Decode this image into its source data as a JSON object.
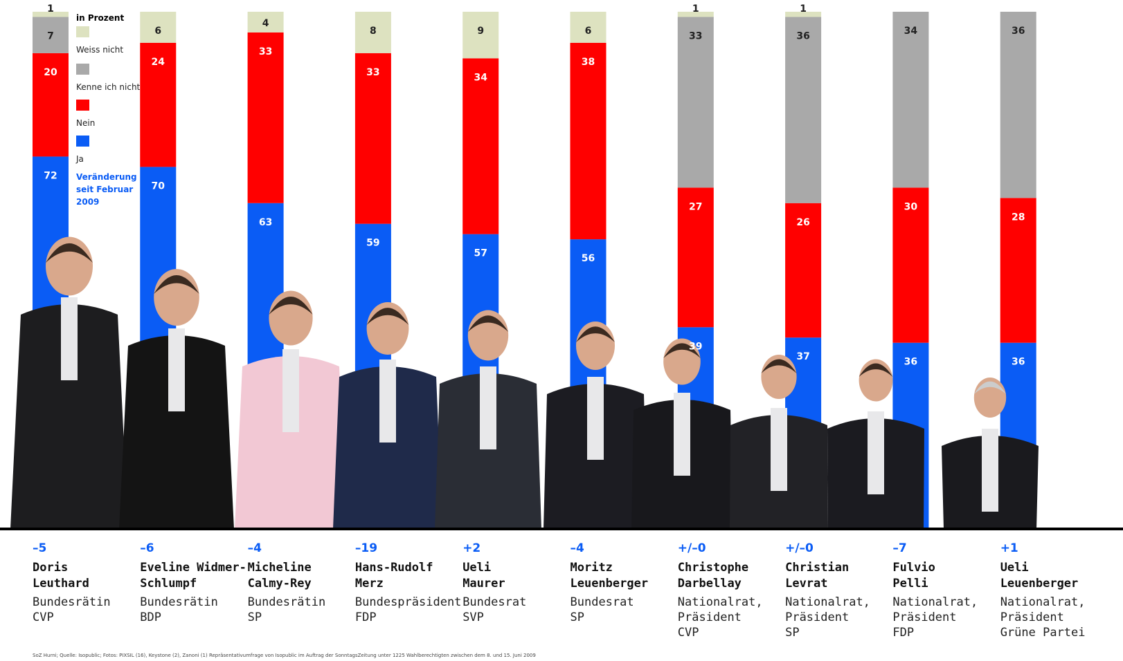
{
  "chart_data": {
    "type": "bar",
    "stacked": true,
    "ylim": [
      0,
      100
    ],
    "legend_title": "in Prozent",
    "change_title": "Veränderung seit Februar 2009",
    "series": [
      {
        "name": "Ja",
        "color": "#0a5cf5",
        "values": [
          72,
          70,
          63,
          59,
          57,
          56,
          39,
          37,
          36,
          36
        ]
      },
      {
        "name": "Nein",
        "color": "#ff0000",
        "values": [
          20,
          24,
          33,
          33,
          34,
          38,
          27,
          26,
          30,
          28
        ]
      },
      {
        "name": "Kenne ich nicht",
        "color": "#a9a9a9",
        "values": [
          7,
          null,
          null,
          null,
          null,
          null,
          33,
          36,
          34,
          36
        ]
      },
      {
        "name": "Weiss nicht",
        "color": "#dde2c0",
        "values": [
          1,
          6,
          4,
          8,
          9,
          6,
          1,
          1,
          null,
          null
        ]
      }
    ],
    "people": [
      {
        "change": "–5",
        "name": [
          "Doris",
          "Leuthard"
        ],
        "role": [
          "Bundesrätin"
        ],
        "party": "CVP"
      },
      {
        "change": "–6",
        "name": [
          "Eveline Widmer-",
          "Schlumpf"
        ],
        "role": [
          "Bundesrätin"
        ],
        "party": "BDP"
      },
      {
        "change": "–4",
        "name": [
          "Micheline",
          "Calmy-Rey"
        ],
        "role": [
          "Bundesrätin"
        ],
        "party": "SP"
      },
      {
        "change": "–19",
        "name": [
          "Hans-Rudolf",
          "Merz"
        ],
        "role": [
          "Bundespräsident"
        ],
        "party": "FDP"
      },
      {
        "change": "+2",
        "name": [
          "Ueli",
          "Maurer"
        ],
        "role": [
          "Bundesrat"
        ],
        "party": "SVP"
      },
      {
        "change": "–4",
        "name": [
          "Moritz",
          "Leuenberger"
        ],
        "role": [
          "Bundesrat"
        ],
        "party": "SP"
      },
      {
        "change": "+/–0",
        "name": [
          "Christophe",
          "Darbellay"
        ],
        "role": [
          "Nationalrat,",
          "Präsident"
        ],
        "party": "CVP"
      },
      {
        "change": "+/–0",
        "name": [
          "Christian",
          "Levrat"
        ],
        "role": [
          "Nationalrat,",
          "Präsident"
        ],
        "party": "SP"
      },
      {
        "change": "–7",
        "name": [
          "Fulvio",
          "Pelli"
        ],
        "role": [
          "Nationalrat,",
          "Präsident"
        ],
        "party": "FDP"
      },
      {
        "change": "+1",
        "name": [
          "Ueli",
          "Leuenberger"
        ],
        "role": [
          "Nationalrat,",
          "Präsident"
        ],
        "party": "Grüne Partei"
      }
    ],
    "source": "SoZ Hurni; Quelle: Isopublic; Fotos: PIXSIL (16), Keystone (2), Zanoni (1)     Repräsentativumfrage von Isopublic im Auftrag der SonntagsZeitung unter 1225 Wahlberechtigten zwischen dem 8. und 15. Juni 2009"
  }
}
